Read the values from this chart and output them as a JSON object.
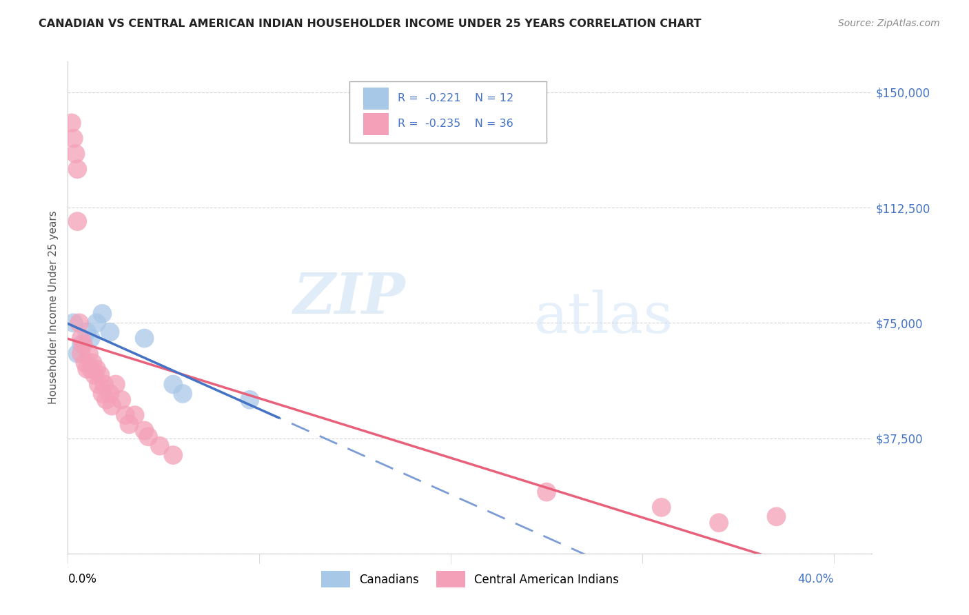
{
  "title": "CANADIAN VS CENTRAL AMERICAN INDIAN HOUSEHOLDER INCOME UNDER 25 YEARS CORRELATION CHART",
  "source": "Source: ZipAtlas.com",
  "ylabel": "Householder Income Under 25 years",
  "xlim": [
    0.0,
    0.42
  ],
  "ylim": [
    0,
    160000
  ],
  "yticks": [
    0,
    37500,
    75000,
    112500,
    150000
  ],
  "ytick_labels": [
    "",
    "$37,500",
    "$75,000",
    "$112,500",
    "$150,000"
  ],
  "xtick_positions": [
    0.0,
    0.1,
    0.2,
    0.3,
    0.4
  ],
  "watermark_zip": "ZIP",
  "watermark_atlas": "atlas",
  "legend_canadian_R": "-0.221",
  "legend_canadian_N": "12",
  "legend_central_R": "-0.235",
  "legend_central_N": "36",
  "background_color": "#ffffff",
  "grid_color": "#cccccc",
  "canadian_color": "#a8c8e8",
  "central_color": "#f4a0b8",
  "canadian_line_color": "#4472c4",
  "central_line_color": "#e8607a",
  "canadians_label": "Canadians",
  "central_label": "Central American Indians",
  "canadian_points": [
    [
      0.003,
      75000
    ],
    [
      0.005,
      65000
    ],
    [
      0.007,
      68000
    ],
    [
      0.01,
      72000
    ],
    [
      0.012,
      70000
    ],
    [
      0.015,
      75000
    ],
    [
      0.018,
      78000
    ],
    [
      0.022,
      72000
    ],
    [
      0.04,
      70000
    ],
    [
      0.055,
      55000
    ],
    [
      0.06,
      52000
    ],
    [
      0.095,
      50000
    ]
  ],
  "central_points": [
    [
      0.002,
      140000
    ],
    [
      0.003,
      135000
    ],
    [
      0.004,
      130000
    ],
    [
      0.005,
      125000
    ],
    [
      0.005,
      108000
    ],
    [
      0.006,
      75000
    ],
    [
      0.007,
      70000
    ],
    [
      0.007,
      65000
    ],
    [
      0.008,
      68000
    ],
    [
      0.009,
      62000
    ],
    [
      0.01,
      60000
    ],
    [
      0.011,
      65000
    ],
    [
      0.012,
      60000
    ],
    [
      0.013,
      62000
    ],
    [
      0.014,
      58000
    ],
    [
      0.015,
      60000
    ],
    [
      0.016,
      55000
    ],
    [
      0.017,
      58000
    ],
    [
      0.018,
      52000
    ],
    [
      0.019,
      55000
    ],
    [
      0.02,
      50000
    ],
    [
      0.022,
      52000
    ],
    [
      0.023,
      48000
    ],
    [
      0.025,
      55000
    ],
    [
      0.028,
      50000
    ],
    [
      0.03,
      45000
    ],
    [
      0.032,
      42000
    ],
    [
      0.035,
      45000
    ],
    [
      0.04,
      40000
    ],
    [
      0.042,
      38000
    ],
    [
      0.048,
      35000
    ],
    [
      0.055,
      32000
    ],
    [
      0.25,
      20000
    ],
    [
      0.31,
      15000
    ],
    [
      0.34,
      10000
    ],
    [
      0.37,
      12000
    ]
  ]
}
